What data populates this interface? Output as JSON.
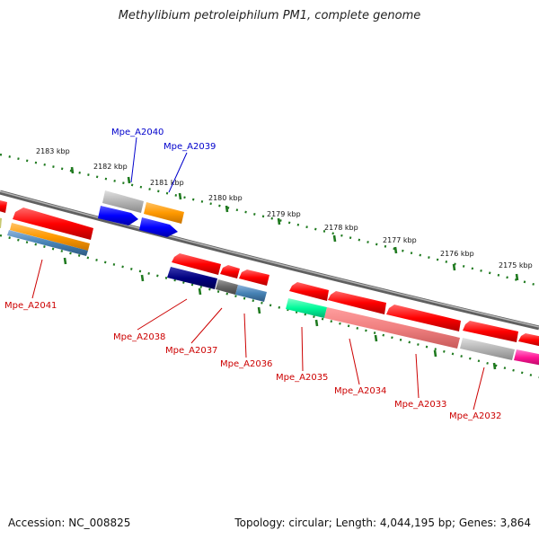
{
  "title": "Methylibium petroleiphilum PM1, complete genome",
  "footer": {
    "accession": "Accession: NC_008825",
    "summary": "Topology: circular; Length: 4,044,195 bp; Genes: 3,864"
  },
  "colors": {
    "forward_label": "#0000cc",
    "reverse_label": "#cc0000",
    "backbone": "#7a7a7a",
    "tick": "#1f7a1f"
  },
  "ticks": [
    {
      "label": "2183 kbp"
    },
    {
      "label": "2182 kbp"
    },
    {
      "label": "2181 kbp"
    },
    {
      "label": "2180 kbp"
    },
    {
      "label": "2179 kbp"
    },
    {
      "label": "2178 kbp"
    },
    {
      "label": "2177 kbp"
    },
    {
      "label": "2176 kbp"
    },
    {
      "label": "2175 kbp"
    }
  ],
  "genes": [
    {
      "label": "Mpe_A2040",
      "strand": "forward"
    },
    {
      "label": "Mpe_A2039",
      "strand": "forward"
    },
    {
      "label": "Mpe_A2041",
      "strand": "reverse"
    },
    {
      "label": "Mpe_A2038",
      "strand": "reverse"
    },
    {
      "label": "Mpe_A2037",
      "strand": "reverse"
    },
    {
      "label": "Mpe_A2036",
      "strand": "reverse"
    },
    {
      "label": "Mpe_A2035",
      "strand": "reverse"
    },
    {
      "label": "Mpe_A2034",
      "strand": "reverse"
    },
    {
      "label": "Mpe_A2033",
      "strand": "reverse"
    },
    {
      "label": "Mpe_A2032",
      "strand": "reverse"
    }
  ]
}
